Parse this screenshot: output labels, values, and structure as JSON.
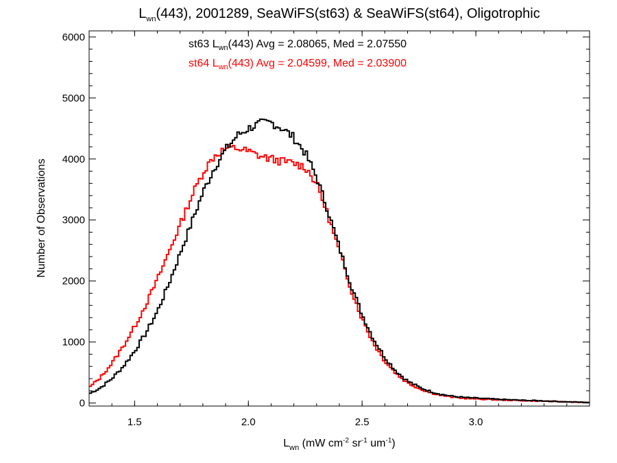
{
  "chart_data": {
    "type": "line",
    "title": {
      "L": "L",
      "sub": "wn",
      "rest": "(443), 2001289, SeaWiFS(st63) & SeaWiFS(st64), Oligotrophic"
    },
    "xlabel": {
      "L": "L",
      "sub": "wn",
      "p1": " (mW cm",
      "sup1": "-2",
      "p2": " sr",
      "sup2": "-1",
      "p3": " um",
      "sup3": "-1",
      "p4": ")"
    },
    "ylabel": "Number of Observations",
    "xlim": [
      1.3,
      3.5
    ],
    "ylim": [
      -50,
      6100
    ],
    "x_ticks": [
      1.5,
      2.0,
      2.5,
      3.0
    ],
    "x_tick_labels": [
      "1.5",
      "2.0",
      "2.5",
      "3.0"
    ],
    "y_ticks": [
      0,
      1000,
      2000,
      3000,
      4000,
      5000,
      6000
    ],
    "y_tick_labels": [
      "0",
      "1000",
      "2000",
      "3000",
      "4000",
      "5000",
      "6000"
    ],
    "annotations": [
      {
        "pre": "st63 L",
        "sub": "wn",
        "post": "(443) Avg = 2.08065, Med = 2.07550",
        "color": "#000000"
      },
      {
        "pre": "st64 L",
        "sub": "wn",
        "post": "(443) Avg = 2.04599, Med = 2.03900",
        "color": "#ff0000"
      }
    ],
    "series": [
      {
        "color": "#000000",
        "x": [
          1.3,
          1.35,
          1.4,
          1.45,
          1.5,
          1.55,
          1.6,
          1.65,
          1.7,
          1.75,
          1.8,
          1.85,
          1.9,
          1.95,
          2.0,
          2.05,
          2.1,
          2.15,
          2.2,
          2.25,
          2.3,
          2.35,
          2.4,
          2.45,
          2.5,
          2.55,
          2.6,
          2.65,
          2.7,
          2.75,
          2.8,
          2.85,
          2.9,
          2.95,
          3.0,
          3.05,
          3.1,
          3.2,
          3.3,
          3.4,
          3.5
        ],
        "values": [
          150,
          250,
          400,
          600,
          850,
          1150,
          1500,
          1950,
          2450,
          2950,
          3450,
          3850,
          4150,
          4380,
          4500,
          4580,
          4600,
          4500,
          4350,
          4100,
          3700,
          3150,
          2550,
          1950,
          1450,
          1050,
          750,
          520,
          360,
          260,
          190,
          140,
          110,
          90,
          80,
          70,
          60,
          45,
          35,
          20,
          10
        ]
      },
      {
        "color": "#ff0000",
        "x": [
          1.3,
          1.35,
          1.4,
          1.45,
          1.5,
          1.55,
          1.6,
          1.65,
          1.7,
          1.75,
          1.8,
          1.85,
          1.9,
          1.95,
          2.0,
          2.05,
          2.1,
          2.15,
          2.2,
          2.25,
          2.3,
          2.35,
          2.4,
          2.45,
          2.5,
          2.55,
          2.6,
          2.65,
          2.7,
          2.75,
          2.8,
          2.85,
          2.9,
          2.95,
          3.0,
          3.05,
          3.1,
          3.2,
          3.3,
          3.4,
          3.5
        ],
        "values": [
          250,
          420,
          650,
          930,
          1250,
          1620,
          2020,
          2470,
          2920,
          3380,
          3780,
          4050,
          4170,
          4180,
          4120,
          4050,
          4000,
          3960,
          3930,
          3870,
          3600,
          3080,
          2480,
          1880,
          1380,
          980,
          690,
          480,
          330,
          240,
          170,
          125,
          95,
          78,
          68,
          60,
          52,
          40,
          30,
          18,
          8
        ]
      }
    ]
  }
}
